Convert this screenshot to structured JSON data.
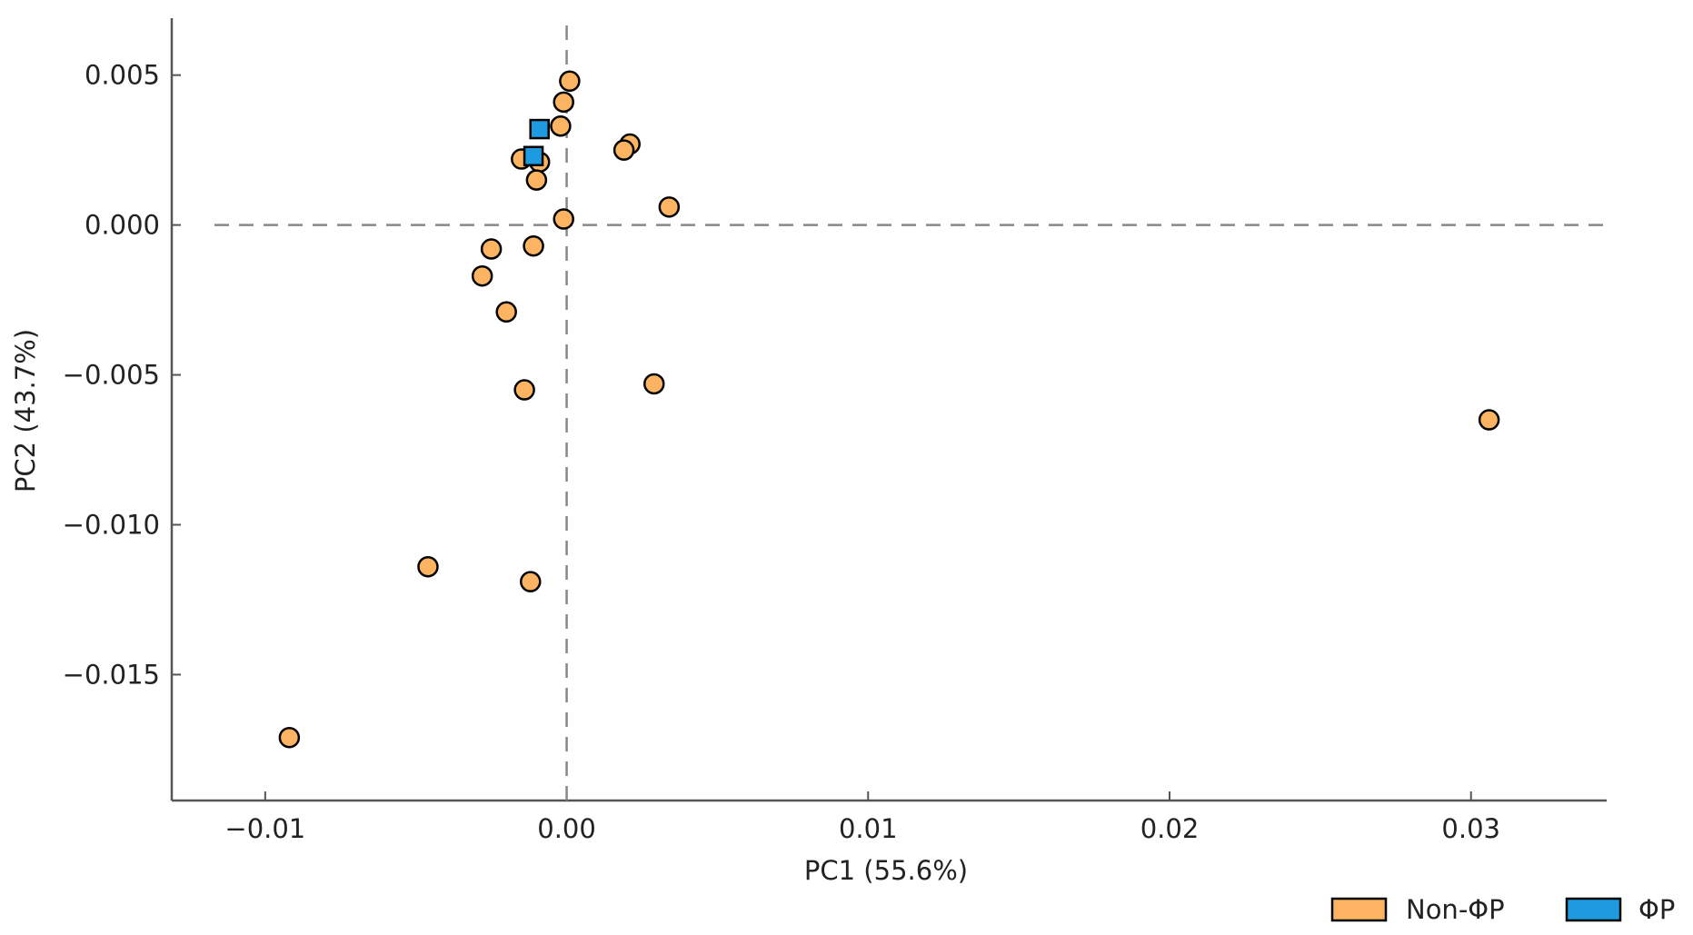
{
  "colors": {
    "non_phip": "#FDB462",
    "phip": "#1E9BE0",
    "marker_edge": "#000000",
    "axis": "#555555",
    "refline": "#888888"
  },
  "chart_data": {
    "type": "scatter",
    "title": "",
    "xlabel": "PC1 (55.6%)",
    "ylabel": "PC2 (43.7%)",
    "xlim": [
      -0.0131,
      0.0345
    ],
    "ylim": [
      -0.0192,
      0.0069
    ],
    "xticks": [
      {
        "value": -0.01,
        "label": "−0.01"
      },
      {
        "value": 0.0,
        "label": "0.00"
      },
      {
        "value": 0.01,
        "label": "0.01"
      },
      {
        "value": 0.02,
        "label": "0.02"
      },
      {
        "value": 0.03,
        "label": "0.03"
      }
    ],
    "yticks": [
      {
        "value": 0.005,
        "label": "0.005"
      },
      {
        "value": 0.0,
        "label": "0.000"
      },
      {
        "value": -0.005,
        "label": "−0.005"
      },
      {
        "value": -0.01,
        "label": "−0.010"
      },
      {
        "value": -0.015,
        "label": "−0.015"
      }
    ],
    "reference_lines": {
      "x": 0,
      "y": 0,
      "style": "dashed"
    },
    "legend_position": "bottom-right",
    "series": [
      {
        "name": "Non-ΦP",
        "marker": "circle",
        "points": [
          {
            "x": 0.0001,
            "y": 0.0048
          },
          {
            "x": -0.0001,
            "y": 0.0041
          },
          {
            "x": -0.0002,
            "y": 0.0033
          },
          {
            "x": 0.0021,
            "y": 0.0027
          },
          {
            "x": 0.0019,
            "y": 0.0025
          },
          {
            "x": -0.0015,
            "y": 0.0022
          },
          {
            "x": -0.0009,
            "y": 0.0021
          },
          {
            "x": -0.001,
            "y": 0.0015
          },
          {
            "x": 0.0034,
            "y": 0.0006
          },
          {
            "x": -0.0001,
            "y": 0.0002
          },
          {
            "x": -0.0025,
            "y": -0.0008
          },
          {
            "x": -0.0011,
            "y": -0.0007
          },
          {
            "x": -0.0028,
            "y": -0.0017
          },
          {
            "x": -0.002,
            "y": -0.0029
          },
          {
            "x": 0.0029,
            "y": -0.0053
          },
          {
            "x": -0.0014,
            "y": -0.0055
          },
          {
            "x": 0.0306,
            "y": -0.0065
          },
          {
            "x": -0.0046,
            "y": -0.0114
          },
          {
            "x": -0.0012,
            "y": -0.0119
          },
          {
            "x": -0.0092,
            "y": -0.0171
          }
        ]
      },
      {
        "name": "ΦP",
        "marker": "square",
        "points": [
          {
            "x": -0.0009,
            "y": 0.0032
          },
          {
            "x": -0.0011,
            "y": 0.0023
          }
        ]
      }
    ]
  }
}
